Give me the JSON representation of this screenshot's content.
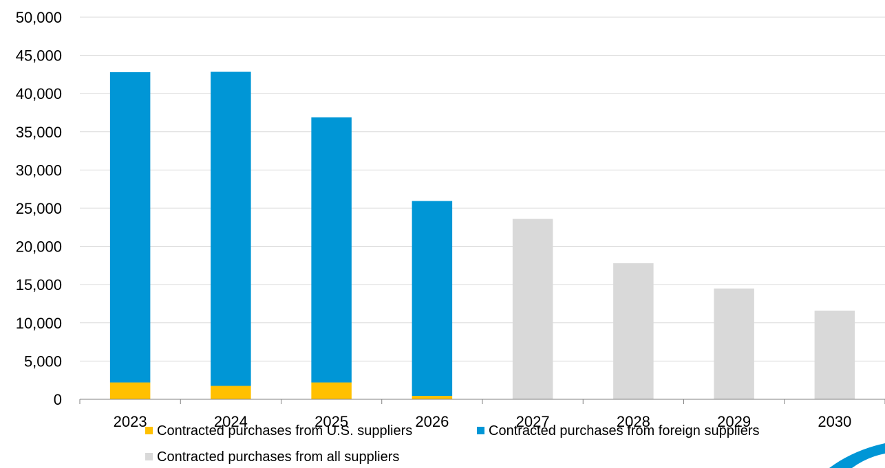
{
  "chart_data": {
    "type": "bar",
    "stacked": true,
    "categories": [
      "2023",
      "2024",
      "2025",
      "2026",
      "2027",
      "2028",
      "2029",
      "2030"
    ],
    "series": [
      {
        "name": "Contracted purchases from U.S. suppliers",
        "color": "#FFC000",
        "values": [
          2200,
          1750,
          2200,
          450,
          0,
          0,
          0,
          0
        ]
      },
      {
        "name": "Contracted purchases from foreign suppliers",
        "color": "#0096D6",
        "values": [
          40600,
          41100,
          34700,
          25500,
          0,
          0,
          0,
          0
        ]
      },
      {
        "name": "Contracted purchases from all suppliers",
        "color": "#D9D9D9",
        "values": [
          0,
          0,
          0,
          0,
          23600,
          17800,
          14500,
          11600
        ]
      }
    ],
    "ylim": [
      0,
      50000
    ],
    "y_ticks": [
      "0",
      "5,000",
      "10,000",
      "15,000",
      "20,000",
      "25,000",
      "30,000",
      "35,000",
      "40,000",
      "45,000",
      "50,000"
    ],
    "title": "",
    "xlabel": "",
    "ylabel": "",
    "grid": true,
    "legend_position": "bottom"
  }
}
